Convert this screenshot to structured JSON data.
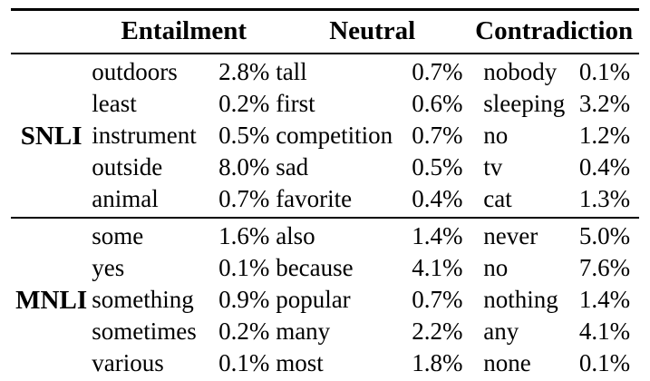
{
  "table": {
    "row_label_header": "",
    "column_groups": [
      {
        "label": "Entailment"
      },
      {
        "label": "Neutral"
      },
      {
        "label": "Contradiction"
      }
    ],
    "sections": [
      {
        "label": "SNLI",
        "rows": [
          [
            "outdoors",
            "2.8%",
            "tall",
            "0.7%",
            "nobody",
            "0.1%"
          ],
          [
            "least",
            "0.2%",
            "first",
            "0.6%",
            "sleeping",
            "3.2%"
          ],
          [
            "instrument",
            "0.5%",
            "competition",
            "0.7%",
            "no",
            "1.2%"
          ],
          [
            "outside",
            "8.0%",
            "sad",
            "0.5%",
            "tv",
            "0.4%"
          ],
          [
            "animal",
            "0.7%",
            "favorite",
            "0.4%",
            "cat",
            "1.3%"
          ]
        ]
      },
      {
        "label": "MNLI",
        "rows": [
          [
            "some",
            "1.6%",
            "also",
            "1.4%",
            "never",
            "5.0%"
          ],
          [
            "yes",
            "0.1%",
            "because",
            "4.1%",
            "no",
            "7.6%"
          ],
          [
            "something",
            "0.9%",
            "popular",
            "0.7%",
            "nothing",
            "1.4%"
          ],
          [
            "sometimes",
            "0.2%",
            "many",
            "2.2%",
            "any",
            "4.1%"
          ],
          [
            "various",
            "0.1%",
            "most",
            "1.8%",
            "none",
            "0.1%"
          ]
        ]
      }
    ],
    "colors": {
      "text": "#000000",
      "background": "#ffffff",
      "rule": "#000000"
    }
  }
}
